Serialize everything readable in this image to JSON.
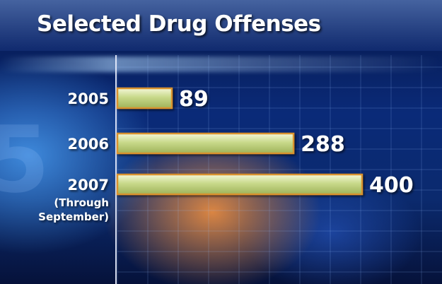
{
  "chart_data": {
    "type": "bar",
    "orientation": "horizontal",
    "title": "Selected Drug Offenses",
    "categories": [
      "2005",
      "2006",
      "2007"
    ],
    "category_notes": [
      "",
      "",
      "(Through\nSeptember)"
    ],
    "values": [
      89,
      288,
      400
    ],
    "xlim": [
      0,
      400
    ],
    "grid": true,
    "colors": {
      "bar": "#c9d98a",
      "bar_edge": "#d9922f",
      "label": "#ffffff"
    }
  }
}
